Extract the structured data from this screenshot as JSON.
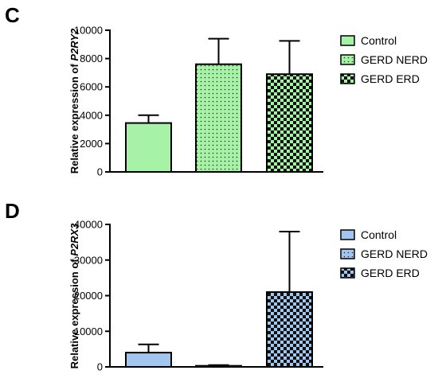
{
  "chart_data": [
    {
      "type": "bar",
      "panel": "C",
      "ylabel_prefix": "Relative expression of ",
      "ylabel_gene": "P2RY2",
      "ylim": [
        0,
        10000
      ],
      "yticks": [
        "0",
        "2000",
        "4000",
        "6000",
        "8000",
        "10000"
      ],
      "categories": [
        "Control",
        "GERD NERD",
        "GERD ERD"
      ],
      "values": [
        3450,
        7600,
        6900
      ],
      "errors": [
        550,
        1800,
        2350
      ],
      "fill_color": "#a6f2a6",
      "patterns": [
        "solid",
        "dots",
        "checker"
      ],
      "legend": [
        "Control",
        "GERD NERD",
        "GERD ERD"
      ],
      "legend_position": "right"
    },
    {
      "type": "bar",
      "panel": "D",
      "ylabel_prefix": "Relative expression of ",
      "ylabel_gene": "P2RX3",
      "ylim": [
        0,
        40000
      ],
      "yticks": [
        "0",
        "10000",
        "20000",
        "30000",
        "40000"
      ],
      "categories": [
        "Control",
        "GERD NERD",
        "GERD ERD"
      ],
      "values": [
        4000,
        300,
        21000
      ],
      "errors": [
        2300,
        200,
        17000
      ],
      "fill_color": "#a3c6ef",
      "patterns": [
        "solid",
        "dots",
        "checker"
      ],
      "legend": [
        "Control",
        "GERD NERD",
        "GERD ERD"
      ],
      "legend_position": "right"
    }
  ]
}
